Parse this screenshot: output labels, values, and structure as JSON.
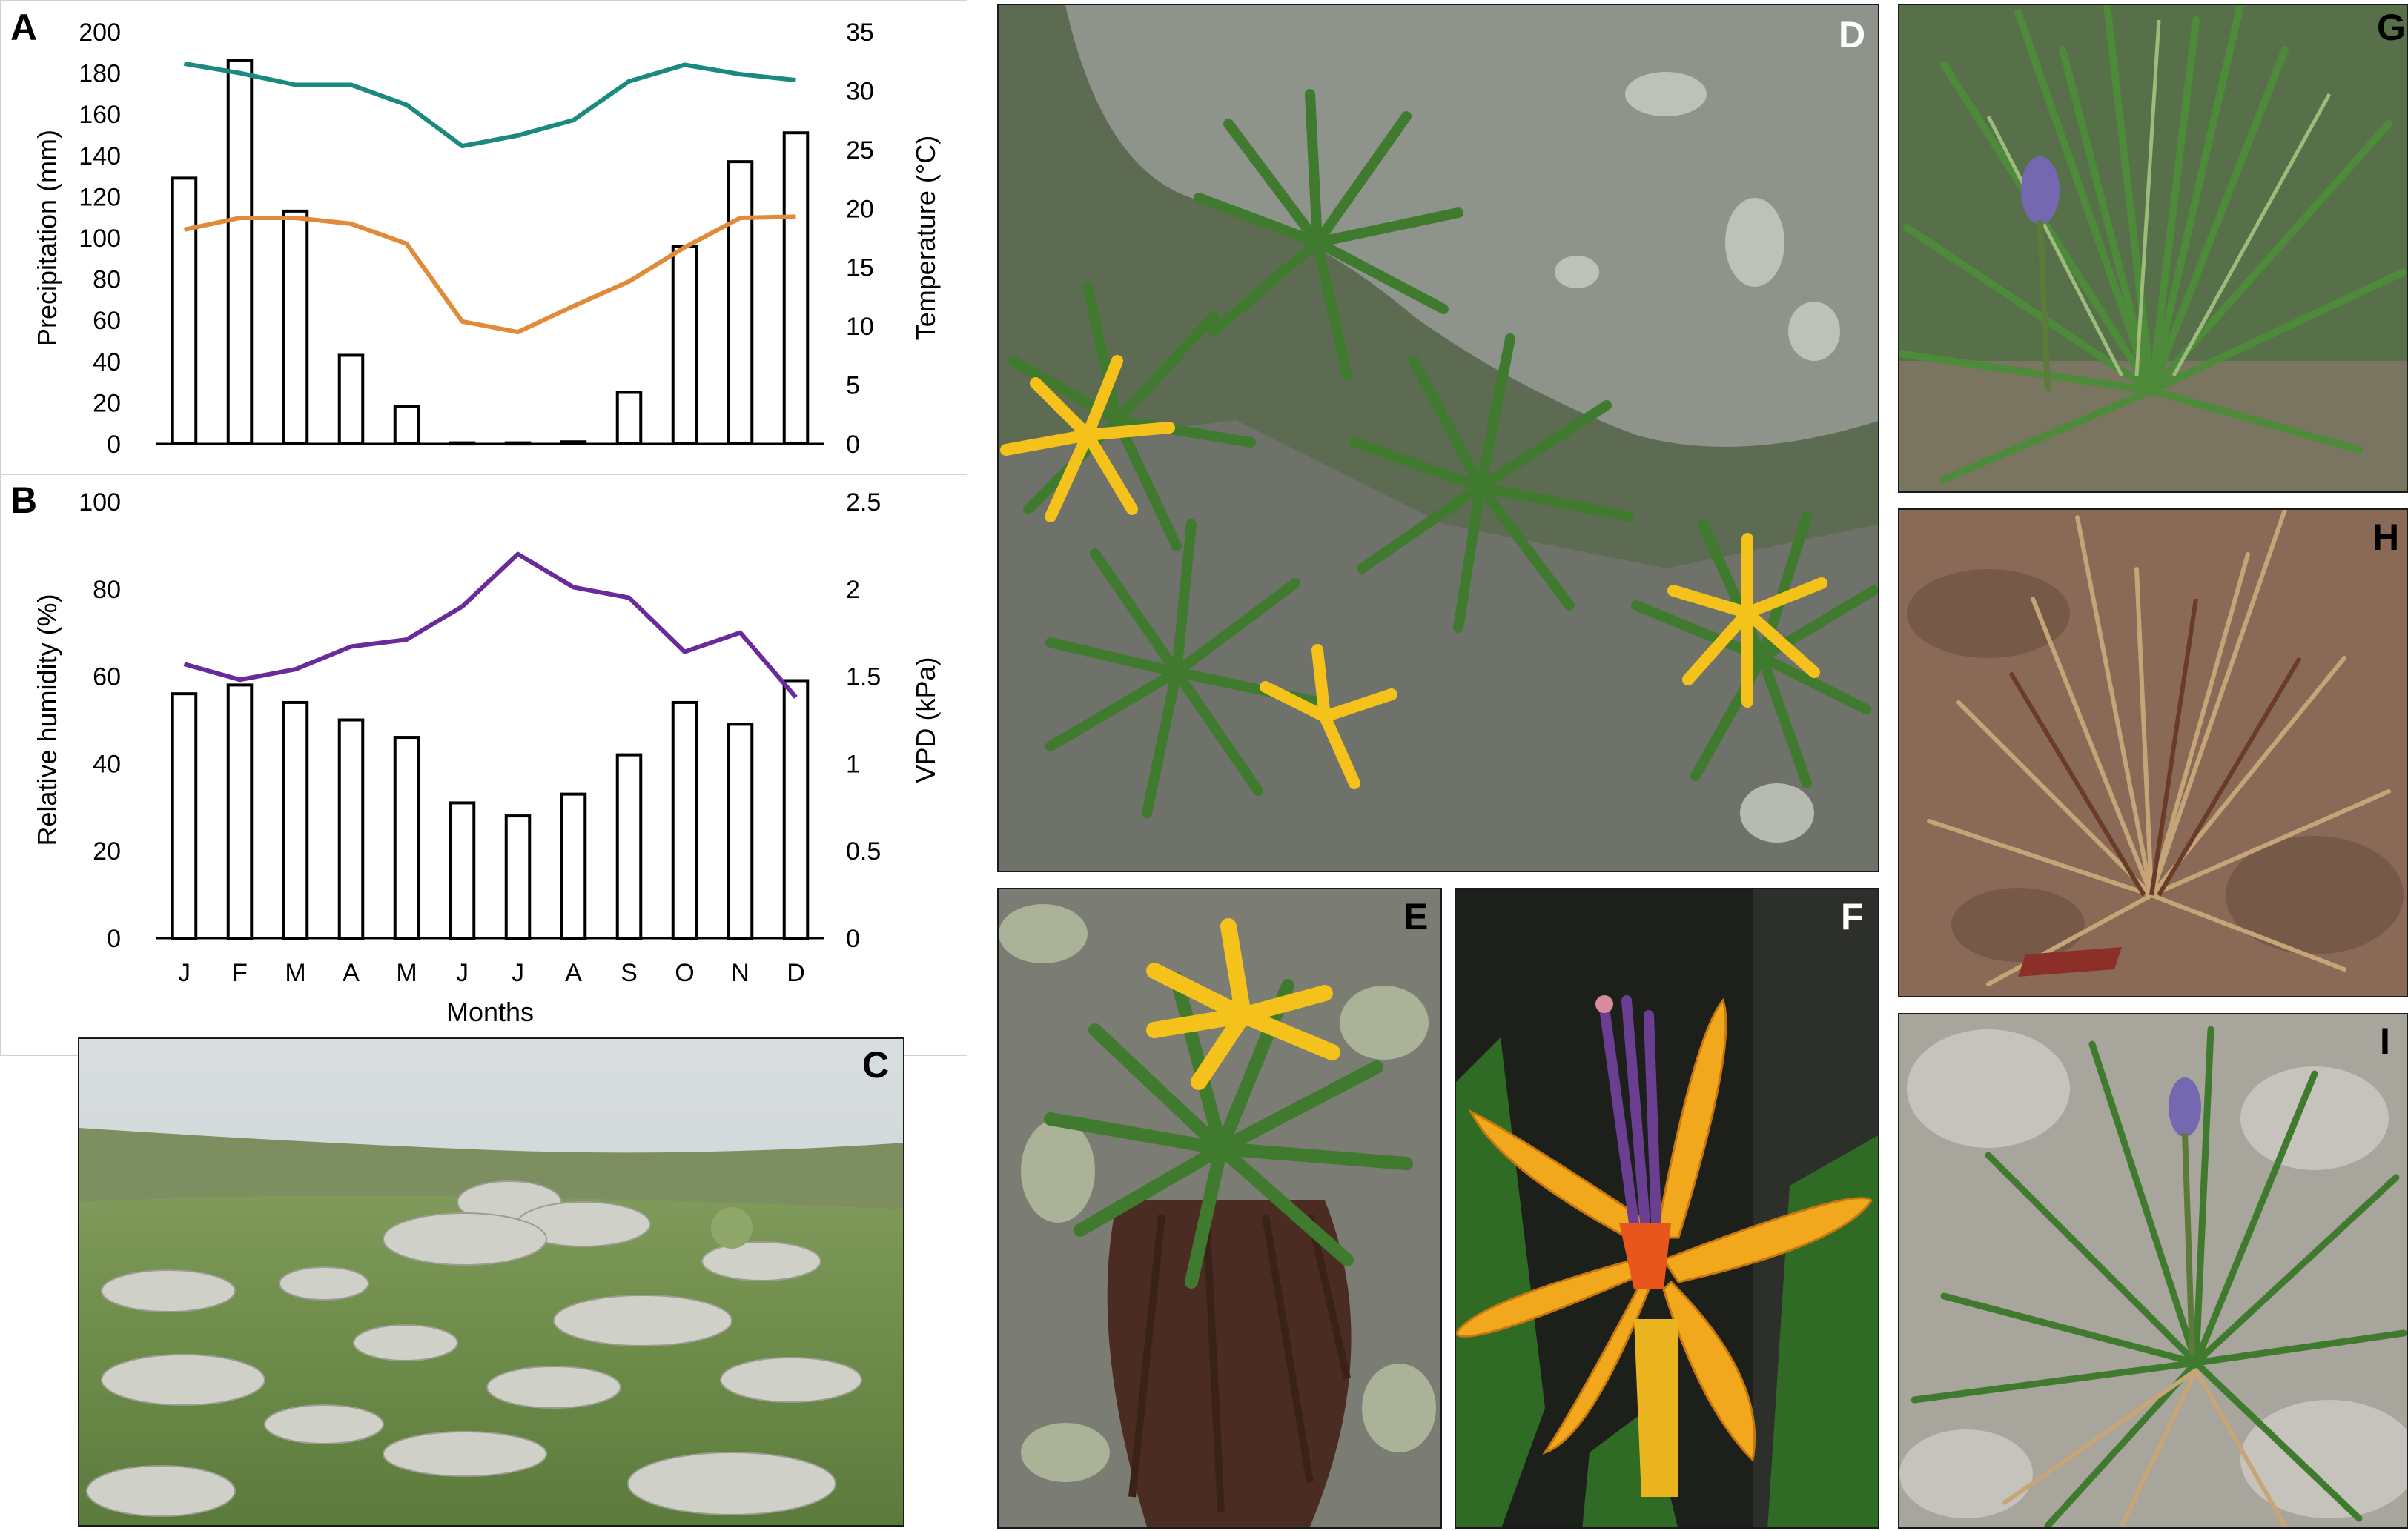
{
  "panels": {
    "a": "A",
    "b": "B",
    "c": "C",
    "d": "D",
    "e": "E",
    "f": "F",
    "g": "G",
    "h": "H",
    "i": "I"
  },
  "colors": {
    "max_temp": "#1b8a7e",
    "min_temp": "#e08a3a",
    "vpd": "#6a2a9a",
    "bars": "#000000"
  },
  "chart_data": [
    {
      "type": "bar+line",
      "panel": "A",
      "categories": [
        "J",
        "F",
        "M",
        "A",
        "M",
        "J",
        "J",
        "A",
        "S",
        "O",
        "N",
        "D"
      ],
      "bar_series": {
        "name": "",
        "values": [
          129,
          186,
          113,
          43,
          18,
          0.5,
          0.5,
          1,
          25,
          96,
          137,
          151
        ],
        "axis": "left"
      },
      "line_series": [
        {
          "name": "",
          "color": "#1b8a7e",
          "values": [
            32.3,
            31.5,
            30.5,
            30.5,
            28.8,
            25.3,
            26.2,
            27.5,
            30.8,
            32.2,
            31.4,
            30.9
          ],
          "axis": "right"
        },
        {
          "name": "",
          "color": "#e08a3a",
          "values": [
            18.2,
            19.2,
            19.2,
            18.7,
            17.0,
            10.4,
            9.5,
            11.7,
            13.8,
            16.7,
            19.2,
            19.3
          ],
          "axis": "right"
        }
      ],
      "ylabel": "Precipitation (mm)",
      "y2label": "Temperature (°C)",
      "ylim": [
        0,
        200
      ],
      "y2lim": [
        0,
        35
      ],
      "yticks": [
        "0",
        "20",
        "40",
        "60",
        "80",
        "100",
        "120",
        "140",
        "160",
        "180",
        "200"
      ],
      "y2ticks": [
        "0",
        "5",
        "10",
        "15",
        "20",
        "25",
        "30",
        "35"
      ],
      "grid": false
    },
    {
      "type": "bar+line",
      "panel": "B",
      "categories": [
        "J",
        "F",
        "M",
        "A",
        "M",
        "J",
        "J",
        "A",
        "S",
        "O",
        "N",
        "D"
      ],
      "bar_series": {
        "name": "",
        "values": [
          56,
          58,
          54,
          50,
          46,
          31,
          28,
          33,
          42,
          54,
          49,
          59
        ],
        "axis": "left"
      },
      "line_series": [
        {
          "name": "",
          "color": "#6a2a9a",
          "values": [
            1.57,
            1.48,
            1.54,
            1.67,
            1.71,
            1.9,
            2.2,
            2.01,
            1.95,
            1.64,
            1.75,
            1.38
          ],
          "axis": "right"
        }
      ],
      "xlabel": "Months",
      "ylabel": "Relative humidity (%)",
      "y2label": "VPD (kPa)",
      "ylim": [
        0,
        100
      ],
      "y2lim": [
        0,
        2.5
      ],
      "yticks": [
        "0",
        "20",
        "40",
        "60",
        "80",
        "100"
      ],
      "y2ticks": [
        "0",
        "0.5",
        "1",
        "1.5",
        "2",
        "2.5"
      ],
      "grid": false
    }
  ]
}
